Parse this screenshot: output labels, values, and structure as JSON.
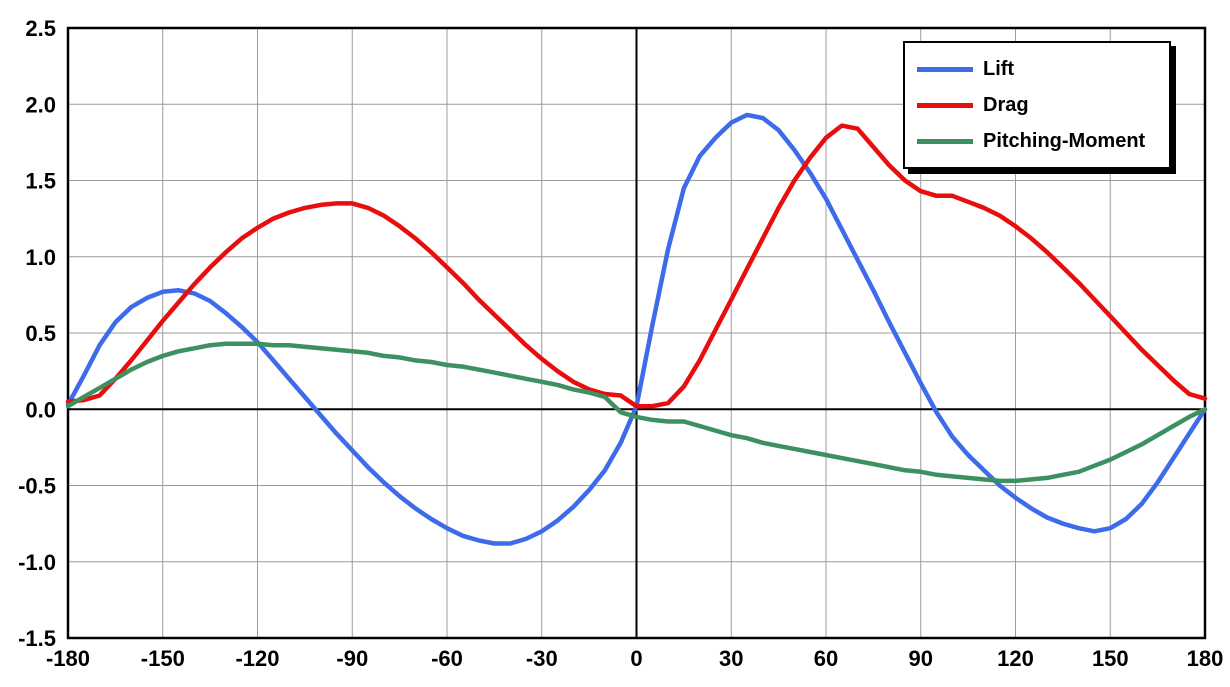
{
  "chart_data": {
    "type": "line",
    "title": "",
    "xlabel": "",
    "ylabel": "",
    "xlim": [
      -180,
      180
    ],
    "ylim": [
      -1.5,
      2.5
    ],
    "grid": true,
    "grid_color": "#9C9C9C",
    "legend_position": "top-right",
    "x_ticks": [
      "-180",
      "-150",
      "-120",
      "-90",
      "-60",
      "-30",
      "0",
      "30",
      "60",
      "90",
      "120",
      "150",
      "180"
    ],
    "y_ticks": [
      "-1.5",
      "-1.0",
      "-0.5",
      "0.0",
      "0.5",
      "1.0",
      "1.5",
      "2.0",
      "2.5"
    ],
    "x": [
      -180,
      -175,
      -170,
      -165,
      -160,
      -155,
      -150,
      -145,
      -140,
      -135,
      -130,
      -125,
      -120,
      -115,
      -110,
      -105,
      -100,
      -95,
      -90,
      -85,
      -80,
      -75,
      -70,
      -65,
      -60,
      -55,
      -50,
      -45,
      -40,
      -35,
      -30,
      -25,
      -20,
      -15,
      -10,
      -5,
      0,
      5,
      10,
      15,
      20,
      25,
      30,
      35,
      40,
      45,
      50,
      55,
      60,
      65,
      70,
      75,
      80,
      85,
      90,
      95,
      100,
      105,
      110,
      115,
      120,
      125,
      130,
      135,
      140,
      145,
      150,
      155,
      160,
      165,
      170,
      175,
      180
    ],
    "series": [
      {
        "name": "Lift",
        "color": "#3D6BEA",
        "values": [
          0.03,
          0.22,
          0.42,
          0.57,
          0.67,
          0.73,
          0.77,
          0.78,
          0.76,
          0.71,
          0.63,
          0.54,
          0.44,
          0.32,
          0.2,
          0.08,
          -0.04,
          -0.16,
          -0.27,
          -0.38,
          -0.48,
          -0.57,
          -0.65,
          -0.72,
          -0.78,
          -0.83,
          -0.86,
          -0.88,
          -0.88,
          -0.85,
          -0.8,
          -0.73,
          -0.64,
          -0.53,
          -0.4,
          -0.22,
          0.02,
          0.55,
          1.05,
          1.45,
          1.66,
          1.78,
          1.88,
          1.93,
          1.91,
          1.83,
          1.7,
          1.55,
          1.38,
          1.18,
          0.98,
          0.78,
          0.57,
          0.37,
          0.17,
          -0.02,
          -0.18,
          -0.3,
          -0.4,
          -0.5,
          -0.58,
          -0.65,
          -0.71,
          -0.75,
          -0.78,
          -0.8,
          -0.78,
          -0.72,
          -0.62,
          -0.48,
          -0.32,
          -0.16,
          0.0
        ]
      },
      {
        "name": "Drag",
        "color": "#E90E0E",
        "values": [
          0.05,
          0.06,
          0.09,
          0.2,
          0.32,
          0.45,
          0.58,
          0.7,
          0.82,
          0.93,
          1.03,
          1.12,
          1.19,
          1.25,
          1.29,
          1.32,
          1.34,
          1.35,
          1.35,
          1.32,
          1.27,
          1.2,
          1.12,
          1.03,
          0.93,
          0.83,
          0.72,
          0.62,
          0.52,
          0.42,
          0.33,
          0.25,
          0.18,
          0.13,
          0.1,
          0.09,
          0.02,
          0.02,
          0.04,
          0.15,
          0.32,
          0.52,
          0.72,
          0.92,
          1.12,
          1.32,
          1.5,
          1.65,
          1.78,
          1.86,
          1.84,
          1.72,
          1.6,
          1.5,
          1.43,
          1.4,
          1.4,
          1.36,
          1.32,
          1.27,
          1.2,
          1.12,
          1.03,
          0.93,
          0.83,
          0.72,
          0.61,
          0.5,
          0.39,
          0.29,
          0.19,
          0.1,
          0.07
        ]
      },
      {
        "name": "Pitching-Moment",
        "color": "#3D9161",
        "values": [
          0.02,
          0.08,
          0.14,
          0.2,
          0.26,
          0.31,
          0.35,
          0.38,
          0.4,
          0.42,
          0.43,
          0.43,
          0.43,
          0.42,
          0.42,
          0.41,
          0.4,
          0.39,
          0.38,
          0.37,
          0.35,
          0.34,
          0.32,
          0.31,
          0.29,
          0.28,
          0.26,
          0.24,
          0.22,
          0.2,
          0.18,
          0.16,
          0.13,
          0.11,
          0.08,
          -0.02,
          -0.05,
          -0.07,
          -0.08,
          -0.08,
          -0.11,
          -0.14,
          -0.17,
          -0.19,
          -0.22,
          -0.24,
          -0.26,
          -0.28,
          -0.3,
          -0.32,
          -0.34,
          -0.36,
          -0.38,
          -0.4,
          -0.41,
          -0.43,
          -0.44,
          -0.45,
          -0.46,
          -0.47,
          -0.47,
          -0.46,
          -0.45,
          -0.43,
          -0.41,
          -0.37,
          -0.33,
          -0.28,
          -0.23,
          -0.17,
          -0.11,
          -0.05,
          0.0
        ]
      }
    ]
  }
}
